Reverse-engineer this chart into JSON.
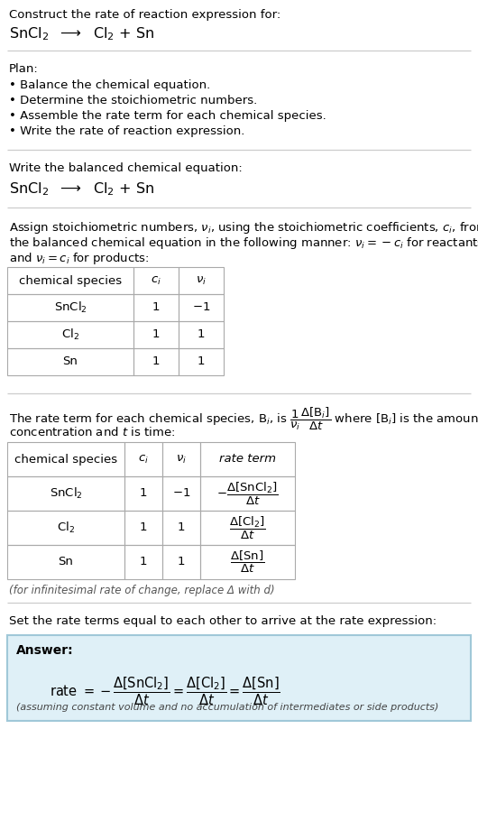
{
  "bg_color": "#ffffff",
  "answer_bg_color": "#dff0f7",
  "answer_border_color": "#a0c8d8",
  "text_color": "#000000",
  "section1_title": "Construct the rate of reaction expression for:",
  "section1_reaction": "SnCl$_2$  $\\longrightarrow$  Cl$_2$ + Sn",
  "plan_title": "Plan:",
  "plan_items": [
    "• Balance the chemical equation.",
    "• Determine the stoichiometric numbers.",
    "• Assemble the rate term for each chemical species.",
    "• Write the rate of reaction expression."
  ],
  "balanced_title": "Write the balanced chemical equation:",
  "balanced_reaction": "SnCl$_2$  $\\longrightarrow$  Cl$_2$ + Sn",
  "stoich_intro_1": "Assign stoichiometric numbers, $\\nu_i$, using the stoichiometric coefficients, $c_i$, from",
  "stoich_intro_2": "the balanced chemical equation in the following manner: $\\nu_i = -c_i$ for reactants",
  "stoich_intro_3": "and $\\nu_i = c_i$ for products:",
  "table1_headers": [
    "chemical species",
    "$c_i$",
    "$\\nu_i$"
  ],
  "table1_rows": [
    [
      "SnCl$_2$",
      "1",
      "$-1$"
    ],
    [
      "Cl$_2$",
      "1",
      "1"
    ],
    [
      "Sn",
      "1",
      "1"
    ]
  ],
  "rate_intro_1": "The rate term for each chemical species, B$_i$, is $\\dfrac{1}{\\nu_i}\\dfrac{\\Delta[\\mathrm{B}_i]}{\\Delta t}$ where [B$_i$] is the amount",
  "rate_intro_2": "concentration and $t$ is time:",
  "table2_headers": [
    "chemical species",
    "$c_i$",
    "$\\nu_i$",
    "rate term"
  ],
  "table2_rows": [
    [
      "SnCl$_2$",
      "1",
      "$-1$",
      "$-\\dfrac{\\Delta[\\mathrm{SnCl_2}]}{\\Delta t}$"
    ],
    [
      "Cl$_2$",
      "1",
      "1",
      "$\\dfrac{\\Delta[\\mathrm{Cl_2}]}{\\Delta t}$"
    ],
    [
      "Sn",
      "1",
      "1",
      "$\\dfrac{\\Delta[\\mathrm{Sn}]}{\\Delta t}$"
    ]
  ],
  "infinitesimal_note": "(for infinitesimal rate of change, replace Δ with d)",
  "rate_expr_intro": "Set the rate terms equal to each other to arrive at the rate expression:",
  "answer_label": "Answer:",
  "rate_equation": "rate $= -\\dfrac{\\Delta[\\mathrm{SnCl_2}]}{\\Delta t} = \\dfrac{\\Delta[\\mathrm{Cl_2}]}{\\Delta t} = \\dfrac{\\Delta[\\mathrm{Sn}]}{\\Delta t}$",
  "assuming_note": "(assuming constant volume and no accumulation of intermediates or side products)",
  "line_color": "#cccccc",
  "table_border_color": "#aaaaaa"
}
